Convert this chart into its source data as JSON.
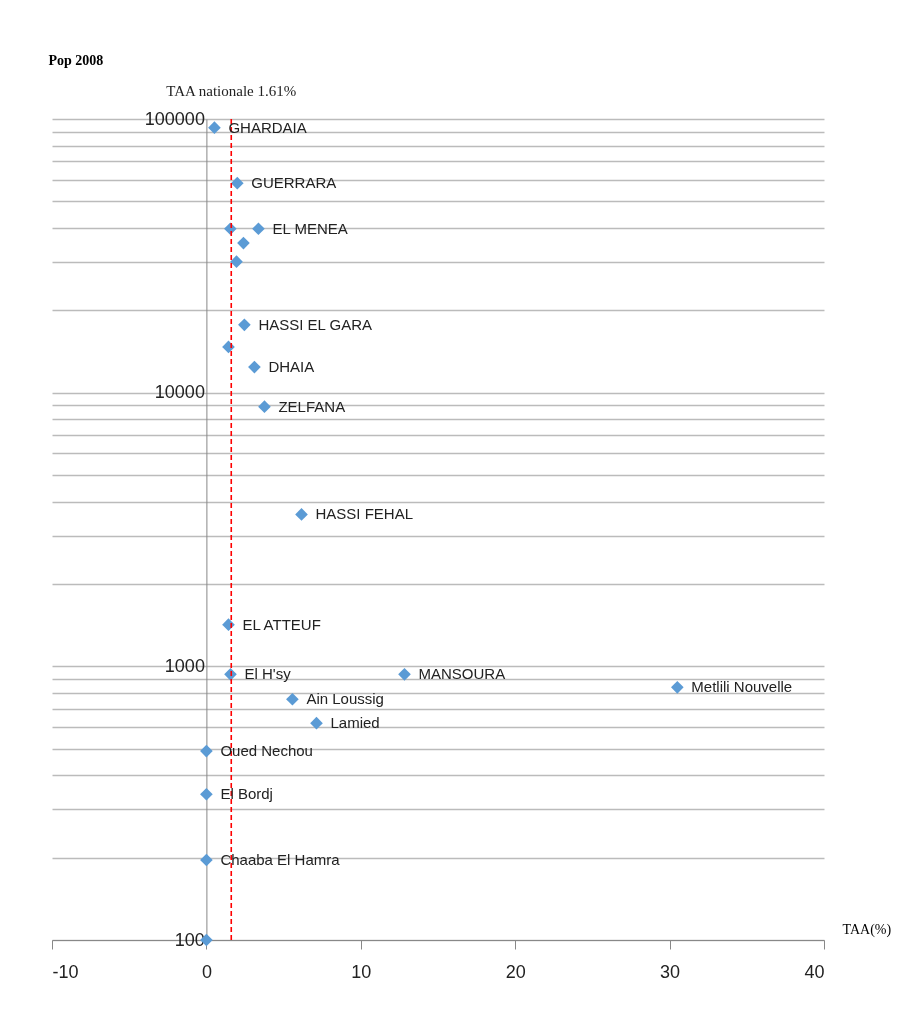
{
  "chart_data": {
    "type": "scatter",
    "xlabel": "TAA(%)",
    "ylabel": "Pop 2008",
    "x": [
      0.52,
      2.0,
      1.55,
      3.37,
      2.4,
      1.95,
      2.46,
      1.43,
      3.11,
      3.76,
      6.16,
      1.43,
      1.56,
      12.83,
      30.5,
      5.57,
      7.13,
      0,
      0,
      0,
      0
    ],
    "series": [
      {
        "color": "#5b9bd5",
        "values": [
          93000,
          58300,
          39700,
          39700,
          35200,
          30100,
          17700,
          14700,
          12400,
          8890,
          3590,
          1420,
          935,
          935,
          838,
          758,
          620,
          490,
          341,
          196,
          100
        ]
      }
    ],
    "marker": "diamond",
    "log": "y",
    "grid": "y",
    "xlim": [
      -10,
      40
    ],
    "xticks": [
      -10,
      0,
      10,
      20,
      30,
      40
    ],
    "ylim": [
      100,
      100000
    ],
    "yticks": [
      100,
      {
        "value": 200,
        "label": null
      },
      {
        "value": 300,
        "label": null
      },
      {
        "value": 400,
        "label": null
      },
      {
        "value": 500,
        "label": null
      },
      {
        "value": 600,
        "label": null
      },
      {
        "value": 700,
        "label": null
      },
      {
        "value": 800,
        "label": null
      },
      {
        "value": 900,
        "label": null
      },
      1000,
      {
        "value": 2000,
        "label": null
      },
      {
        "value": 3000,
        "label": null
      },
      {
        "value": 4000,
        "label": null
      },
      {
        "value": 5000,
        "label": null
      },
      {
        "value": 6000,
        "label": null
      },
      {
        "value": 7000,
        "label": null
      },
      {
        "value": 8000,
        "label": null
      },
      {
        "value": 9000,
        "label": null
      },
      10000,
      {
        "value": 20000,
        "label": null
      },
      {
        "value": 30000,
        "label": null
      },
      {
        "value": 40000,
        "label": null
      },
      {
        "value": 50000,
        "label": null
      },
      {
        "value": 60000,
        "label": null
      },
      {
        "value": 70000,
        "label": null
      },
      {
        "value": 80000,
        "label": null
      },
      {
        "value": 90000,
        "label": null
      },
      100000
    ],
    "ref_lines": [
      {
        "axis": "x",
        "value": 1.61,
        "label": "TAA nationale 1.61%",
        "color": "#ff0000",
        "line_style": "dashed"
      }
    ],
    "annotations": [
      {
        "text": "GHARDAIA",
        "x": 0.52,
        "y": 93000
      },
      {
        "text": "GUERRARA",
        "x": 2.0,
        "y": 58300
      },
      {
        "text": "EL MENEA",
        "x": 3.37,
        "y": 39700
      },
      {
        "text": "HASSI EL GARA",
        "x": 2.46,
        "y": 17700
      },
      {
        "text": "DHAIA",
        "x": 3.11,
        "y": 12400
      },
      {
        "text": "ZELFANA",
        "x": 3.76,
        "y": 8890
      },
      {
        "text": "HASSI FEHAL",
        "x": 6.16,
        "y": 3590
      },
      {
        "text": "EL ATTEUF",
        "x": 1.43,
        "y": 1420
      },
      {
        "text": "El H'sy",
        "x": 1.56,
        "y": 935
      },
      {
        "text": "MANSOURA",
        "x": 12.83,
        "y": 935
      },
      {
        "text": "Metlili Nouvelle",
        "x": 30.5,
        "y": 838
      },
      {
        "text": "Ain Loussig",
        "x": 5.57,
        "y": 758
      },
      {
        "text": "Lamied",
        "x": 7.13,
        "y": 620
      },
      {
        "text": "Oued Nechou",
        "x": 0,
        "y": 490
      },
      {
        "text": "El Bordj",
        "x": 0,
        "y": 341
      },
      {
        "text": "Chaaba El Hamra",
        "x": 0,
        "y": 196
      }
    ]
  }
}
